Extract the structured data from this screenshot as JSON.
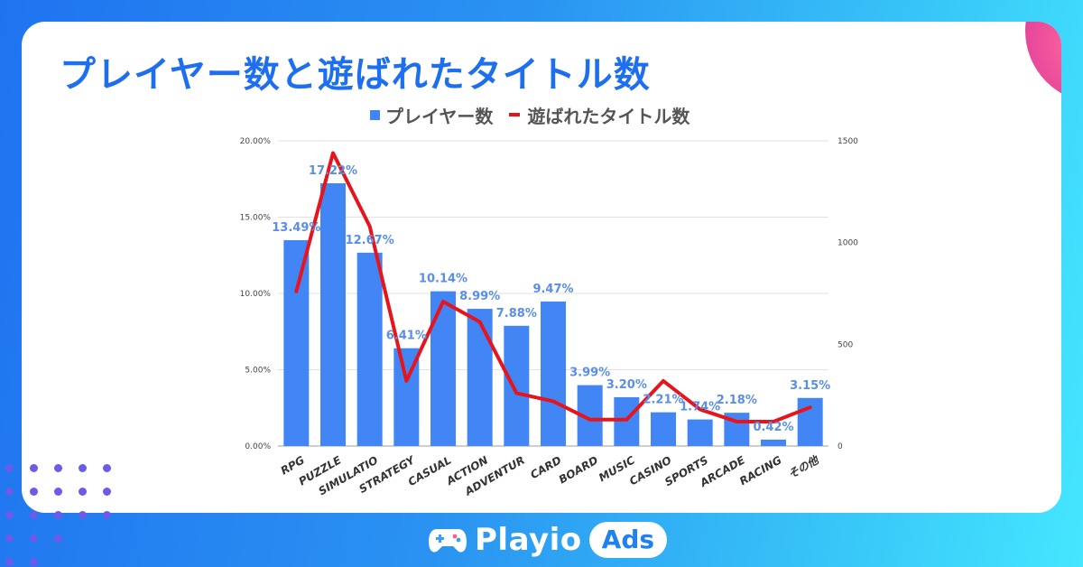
{
  "header": {
    "title": "プレイヤー数と遊ばれたタイトル数"
  },
  "brand": {
    "name": "Playio",
    "badge": "Ads",
    "logo_icon": "gamepad-icon"
  },
  "colors": {
    "bar": "#4285f4",
    "line": "#e8141c",
    "bar_label": "#5a8ee8",
    "title": "#1e6ff0"
  },
  "chart_data": {
    "type": "bar",
    "legend_position": "top",
    "grid": true,
    "categories": [
      "RPG",
      "PUZZLE",
      "SIMULATIO",
      "STRATEGY",
      "CASUAL",
      "ACTION",
      "ADVENTUR",
      "CARD",
      "BOARD",
      "MUSIC",
      "CASINO",
      "SPORTS",
      "ARCADE",
      "RACING",
      "その他"
    ],
    "y_ticks": [
      "0.00%",
      "5.00%",
      "10.00%",
      "15.00%",
      "20.00%"
    ],
    "y2_ticks": [
      "0",
      "500",
      "1000",
      "1500"
    ],
    "ylim": [
      0,
      20
    ],
    "y2lim": [
      0,
      1500
    ],
    "series": [
      {
        "name": "プレイヤー数",
        "type": "bar",
        "axis": "left",
        "values": [
          13.49,
          17.22,
          12.67,
          6.41,
          10.14,
          8.99,
          7.88,
          9.47,
          3.99,
          3.2,
          2.21,
          1.74,
          2.18,
          0.42,
          3.15
        ],
        "labels": [
          "13.49%",
          "17.22%",
          "12.67%",
          "6.41%",
          "10.14%",
          "8.99%",
          "7.88%",
          "9.47%",
          "3.99%",
          "3.20%",
          "2.21%",
          "1.74%",
          "2.18%",
          "0.42%",
          "3.15%"
        ]
      },
      {
        "name": "遊ばれたタイトル数",
        "type": "line",
        "axis": "right",
        "values": [
          760,
          1440,
          1080,
          320,
          710,
          610,
          260,
          220,
          130,
          130,
          320,
          180,
          120,
          120,
          190
        ]
      }
    ]
  }
}
